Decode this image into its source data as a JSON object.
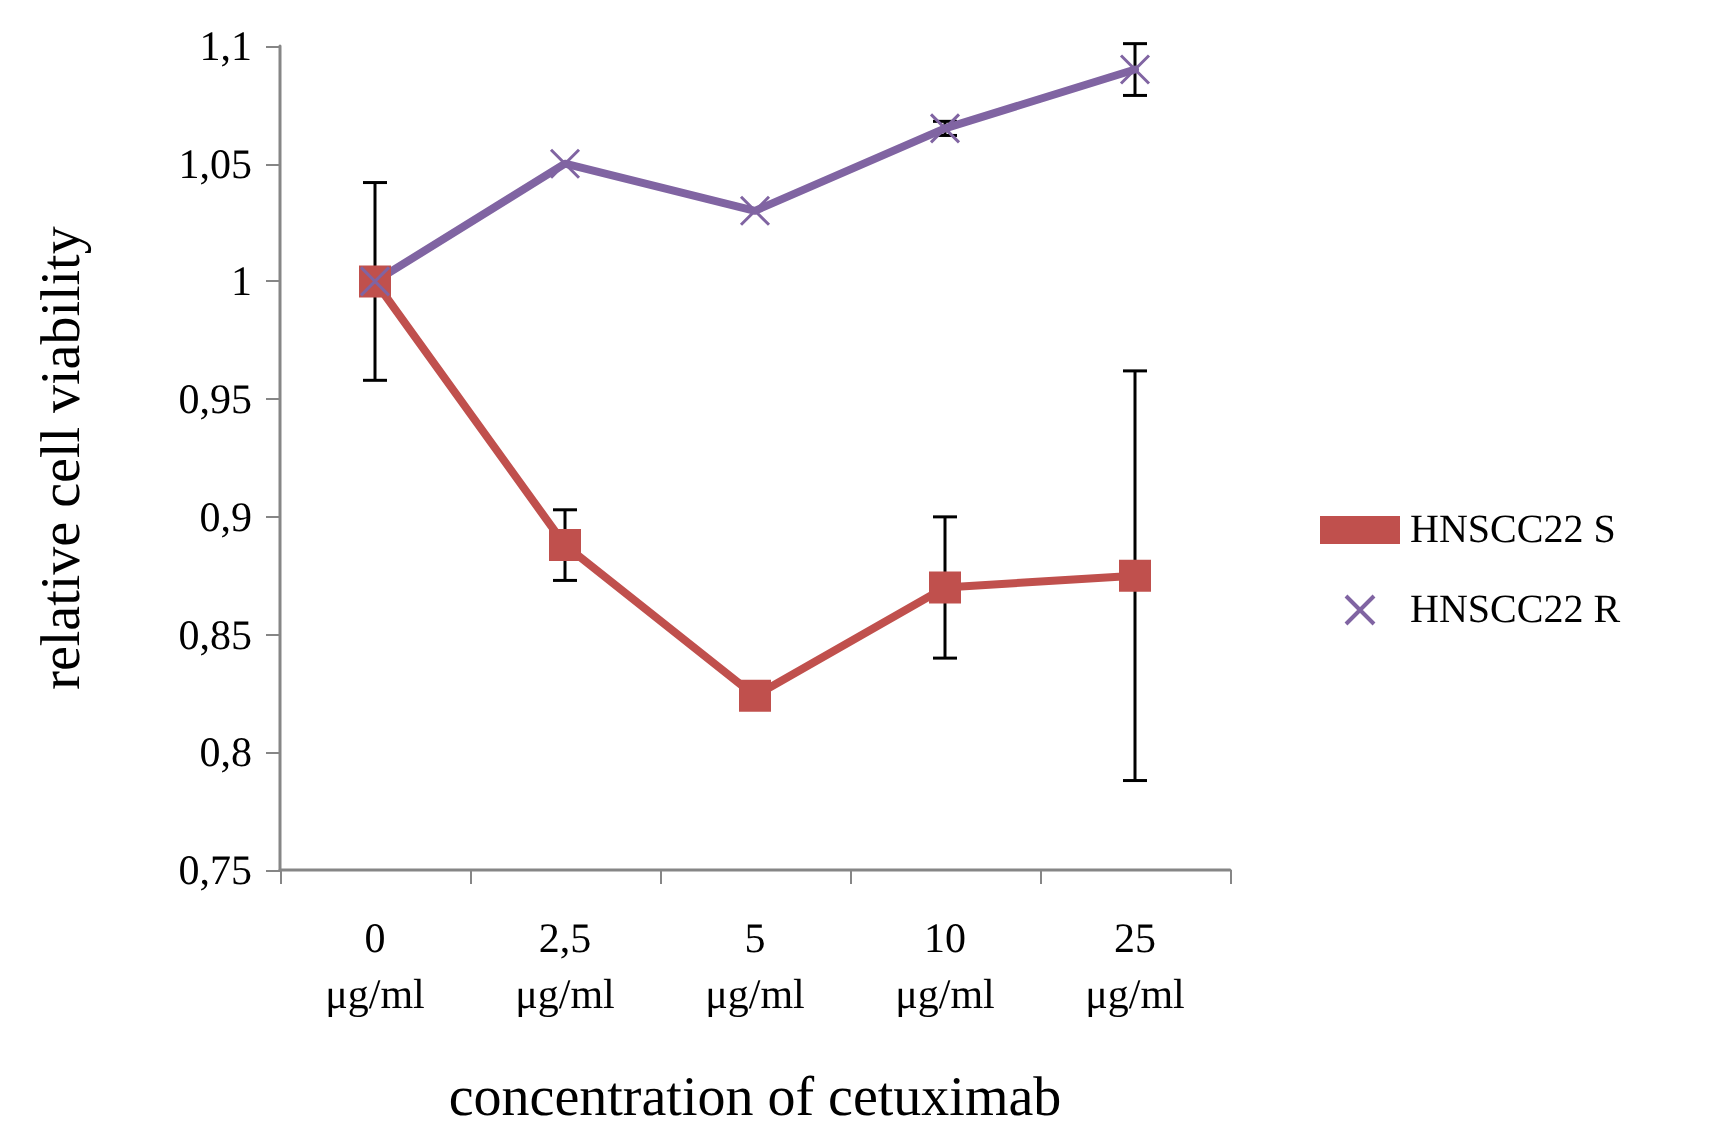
{
  "chart_data": {
    "type": "line",
    "xlabel": "concentration of cetuximab",
    "ylabel": "relative cell viability",
    "categories": [
      "0 μg/ml",
      "2,5 μg/ml",
      "5 μg/ml",
      "10 μg/ml",
      "25 μg/ml"
    ],
    "series": [
      {
        "name": "HNSCC22 S",
        "color": "#c0504d",
        "marker": "square",
        "values": [
          1,
          0.888,
          0.824,
          0.87,
          0.875
        ],
        "errors": [
          0.042,
          0.015,
          null,
          0.03,
          0.087
        ]
      },
      {
        "name": "HNSCC22 R",
        "color": "#8064a2",
        "marker": "cross",
        "values": [
          1,
          1.05,
          1.03,
          1.065,
          1.09
        ],
        "errors": [
          null,
          null,
          null,
          0.003,
          0.011
        ]
      }
    ],
    "ylim": [
      0.75,
      1.1
    ],
    "yticks": [
      {
        "value": 0.75,
        "label": "0,75"
      },
      {
        "value": 0.8,
        "label": "0,8"
      },
      {
        "value": 0.85,
        "label": "0,85"
      },
      {
        "value": 0.9,
        "label": "0,9"
      },
      {
        "value": 0.95,
        "label": "0,95"
      },
      {
        "value": 1,
        "label": "1"
      },
      {
        "value": 1.05,
        "label": "1,05"
      },
      {
        "value": 1.1,
        "label": "1,1"
      }
    ],
    "grid": false,
    "legend": "right",
    "line_style": "solid"
  }
}
